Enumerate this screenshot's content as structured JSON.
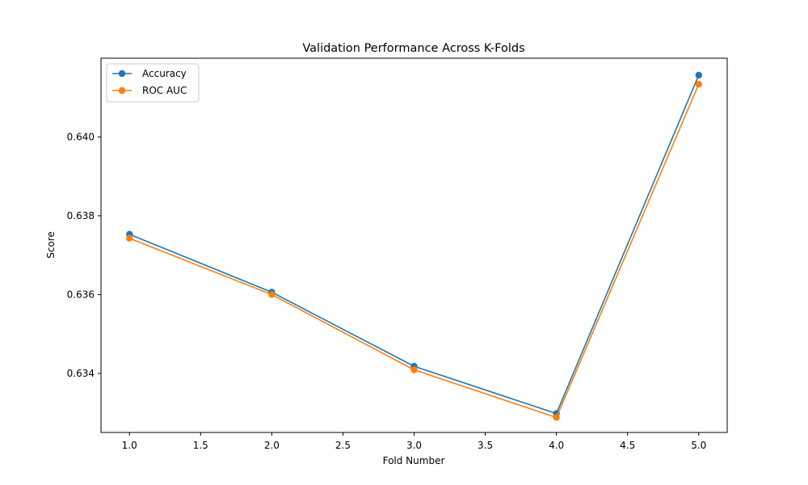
{
  "chart_data": {
    "type": "line",
    "title": "Validation Performance Across K-Folds",
    "xlabel": "Fold Number",
    "ylabel": "Score",
    "x": [
      1,
      2,
      3,
      4,
      5
    ],
    "xlim": [
      0.8,
      5.2
    ],
    "ylim": [
      0.6325,
      0.642
    ],
    "xticks": [
      1.0,
      1.5,
      2.0,
      2.5,
      3.0,
      3.5,
      4.0,
      4.5,
      5.0
    ],
    "xtick_labels": [
      "1.0",
      "1.5",
      "2.0",
      "2.5",
      "3.0",
      "3.5",
      "4.0",
      "4.5",
      "5.0"
    ],
    "yticks": [
      0.634,
      0.636,
      0.638,
      0.64
    ],
    "ytick_labels": [
      "0.634",
      "0.636",
      "0.638",
      "0.640"
    ],
    "grid": false,
    "legend_position": "top-left",
    "series": [
      {
        "name": "Accuracy",
        "color": "#1f77b4",
        "marker": "circle",
        "values": [
          0.63753,
          0.63606,
          0.63418,
          0.63298,
          0.64157
        ]
      },
      {
        "name": "ROC AUC",
        "color": "#ff7f0e",
        "marker": "circle",
        "values": [
          0.63743,
          0.636,
          0.63409,
          0.63288,
          0.64134
        ]
      }
    ]
  }
}
